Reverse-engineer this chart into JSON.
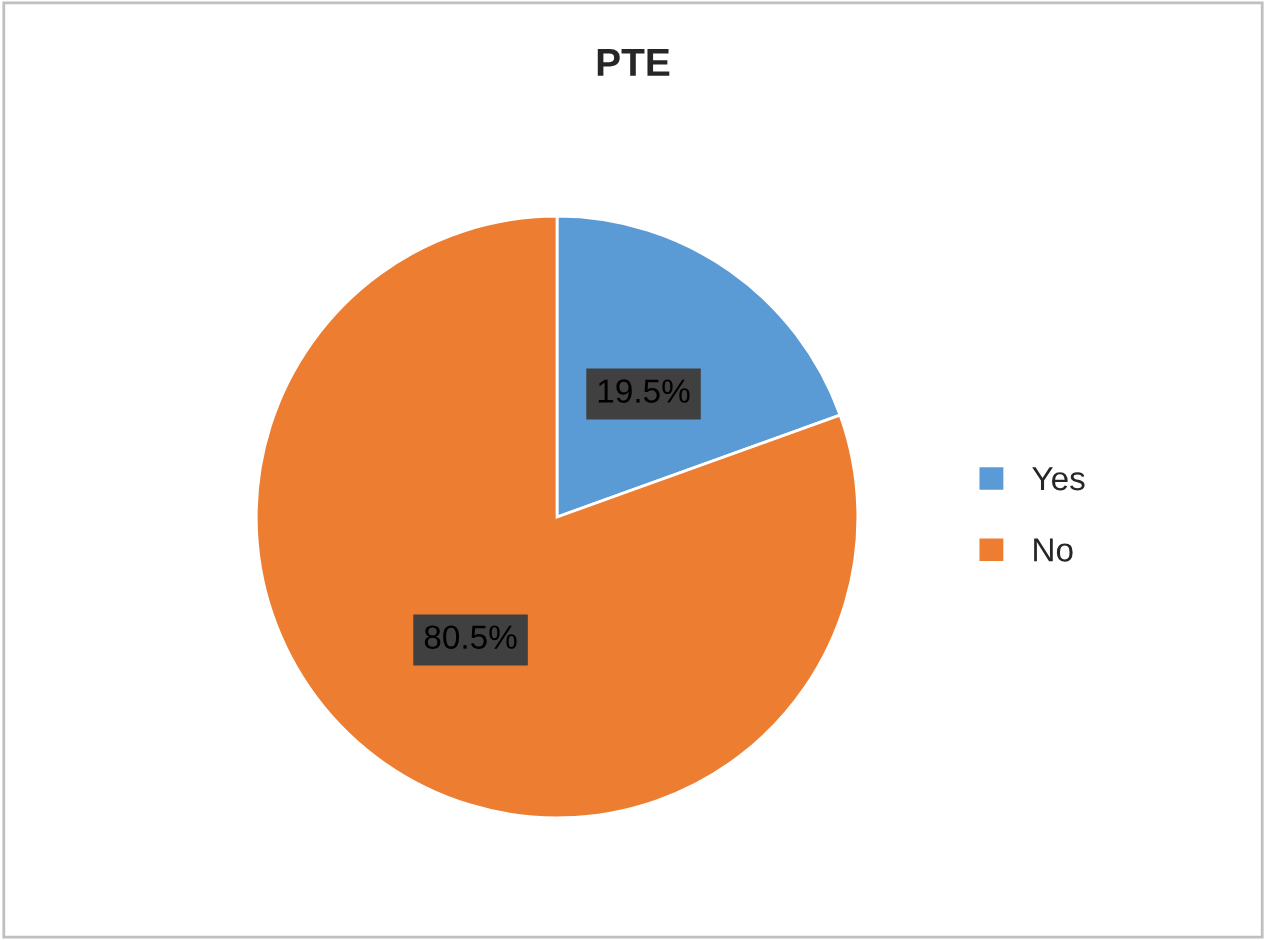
{
  "chart_data": {
    "type": "pie",
    "title": "PTE",
    "categories": [
      "Yes",
      "No"
    ],
    "values": [
      19.5,
      80.5
    ],
    "colors": [
      "#5b9bd5",
      "#ed7d31"
    ],
    "value_labels": [
      "19.5%",
      "80.5%"
    ],
    "legend": "right"
  }
}
